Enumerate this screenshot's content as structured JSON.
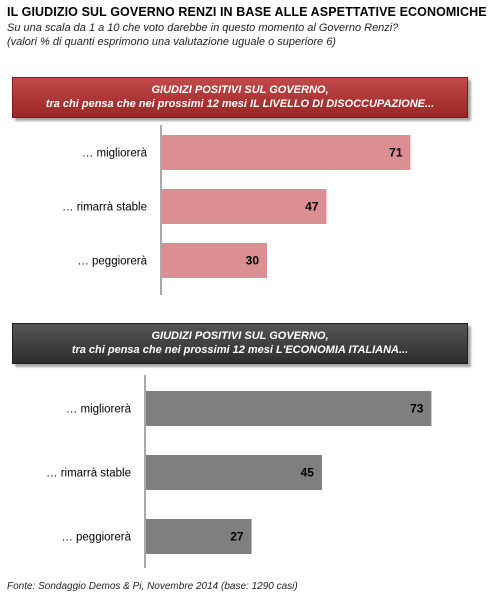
{
  "title": "IL GIUDIZIO  SUL GOVERNO RENZI IN BASE ALLE ASPETTATIVE  ECONOMICHE",
  "subtitle_line1": "Su una scala da 1 a 10 che voto darebbe in questo momento al Governo Renzi?",
  "subtitle_line2": "(valori % di quanti esprimono una valutazione uguale o superiore 6)",
  "footer": "Fonte: Sondaggio Demos & Pi, Novembre 2014 (base: 1290 casi)",
  "colors": {
    "bar1": "#dc8f92",
    "bar2": "#7f7f7f",
    "banner1": "#a83232",
    "banner2": "#3a3a3a"
  },
  "chart_data": [
    {
      "type": "bar",
      "orientation": "horizontal",
      "title_line1": "GIUDIZI POSITIVI SUL GOVERNO,",
      "title_line2": "tra chi pensa che nei prossimi 12 mesi IL LIVELLO DI DISOCCUPAZIONE...",
      "categories": [
        "… migliorerà",
        "… rimarrà  stable",
        "… peggiorerà"
      ],
      "values": [
        71,
        47,
        30
      ],
      "xlim": [
        0,
        100
      ]
    },
    {
      "type": "bar",
      "orientation": "horizontal",
      "title_line1": "GIUDIZI POSITIVI SUL GOVERNO,",
      "title_line2": "tra chi pensa che nei prossimi 12 mesi L'ECONOMIA ITALIANA...",
      "categories": [
        "… migliorerà",
        "… rimarrà  stable",
        "… peggiorerà"
      ],
      "values": [
        73,
        45,
        27
      ],
      "xlim": [
        0,
        100
      ]
    }
  ]
}
